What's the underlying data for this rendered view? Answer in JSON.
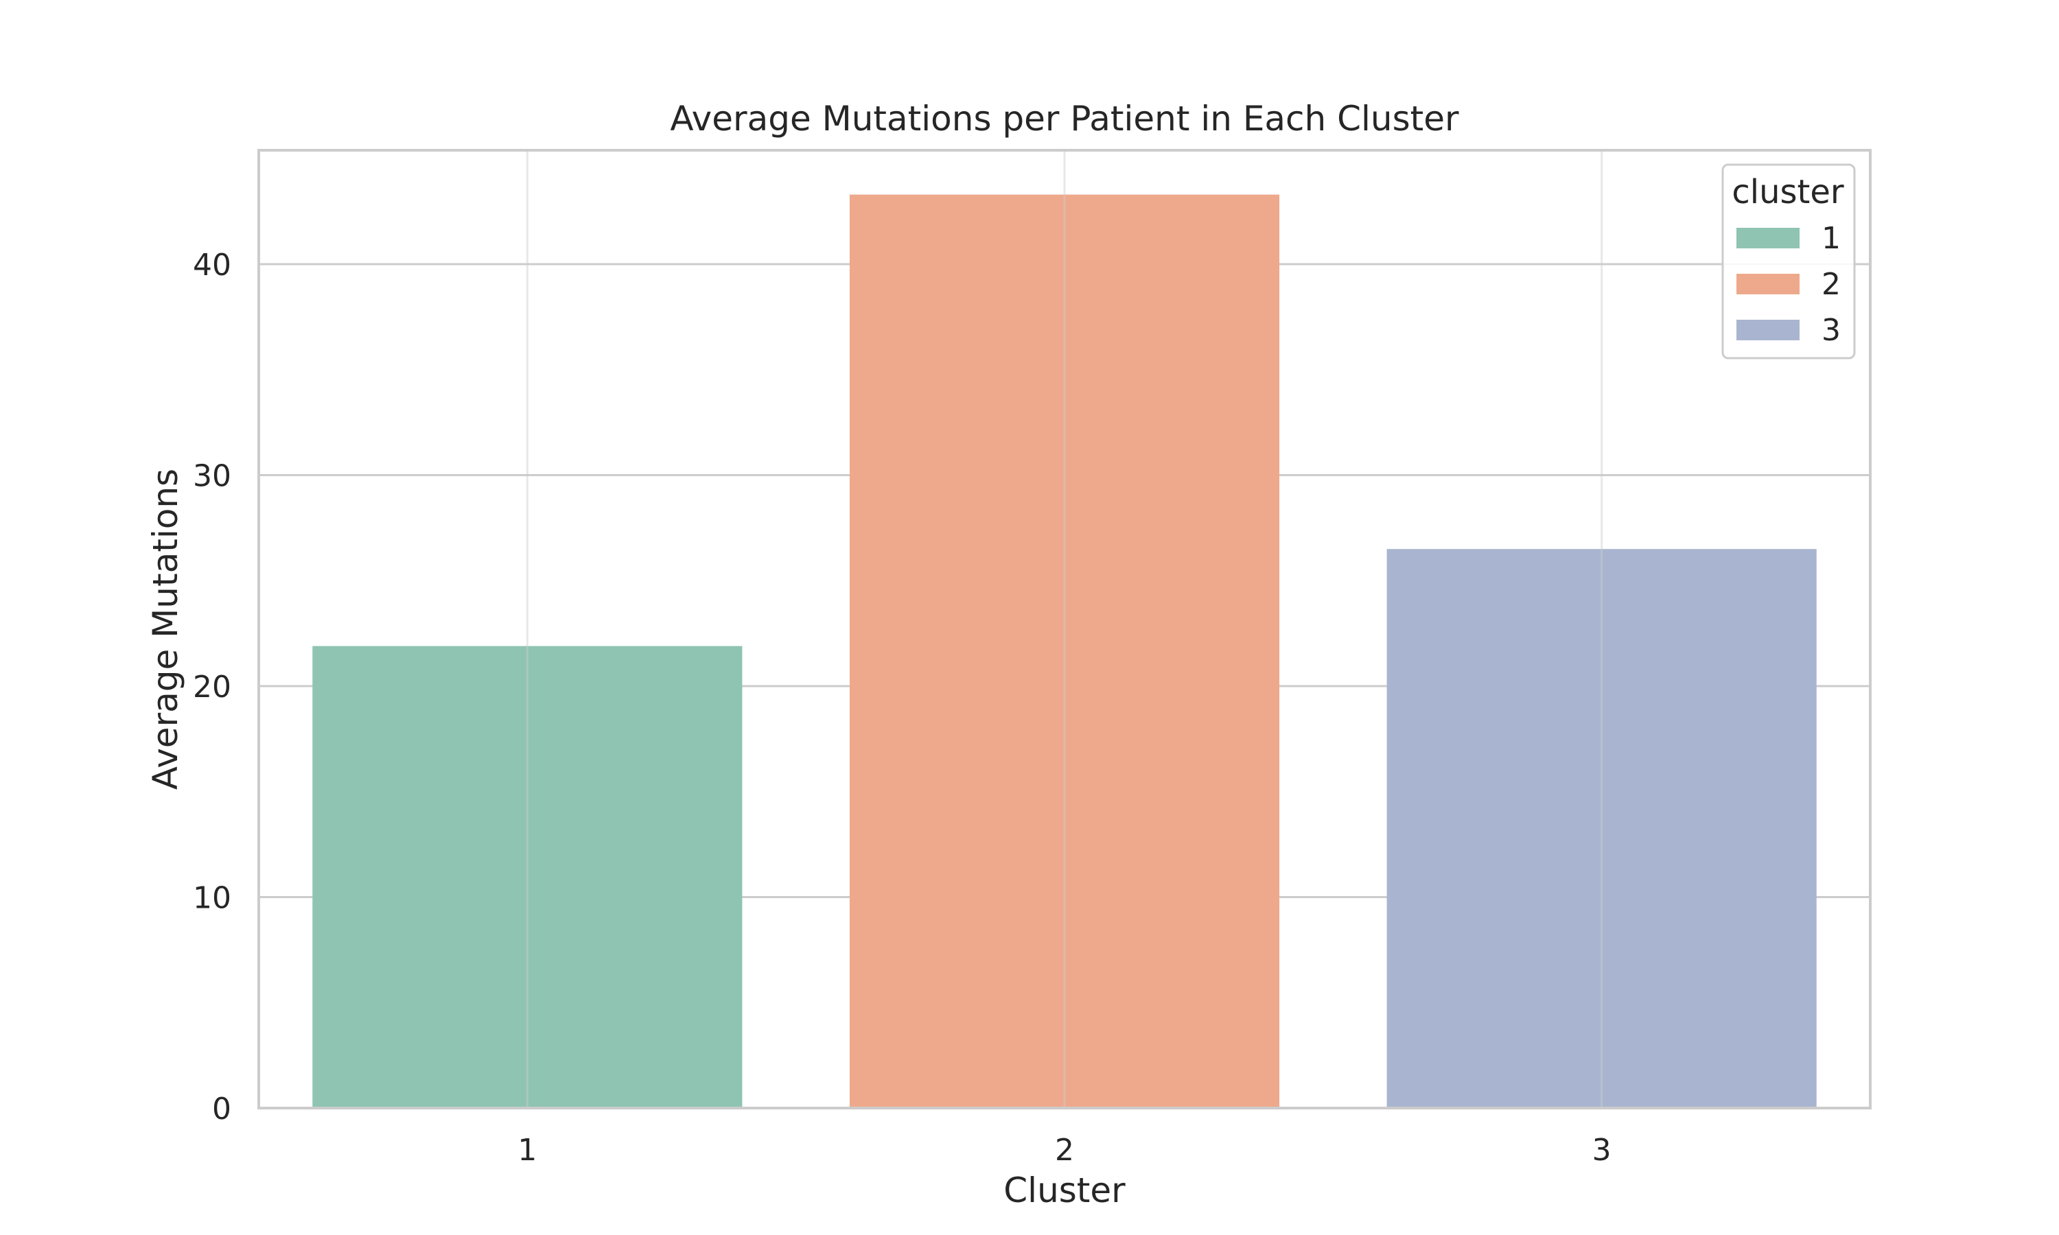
{
  "chart_data": {
    "type": "bar",
    "title": "Average Mutations per Patient in Each Cluster",
    "xlabel": "Cluster",
    "ylabel": "Average Mutations",
    "categories": [
      "1",
      "2",
      "3"
    ],
    "values": [
      21.9,
      43.3,
      26.5
    ],
    "ylim": [
      0,
      45.4
    ],
    "yticks": [
      0,
      10,
      20,
      30,
      40
    ],
    "grid": true,
    "colors": [
      "#8fc4b2",
      "#eea98c",
      "#a9b5d0"
    ],
    "legend": {
      "title": "cluster",
      "position": "top-right",
      "entries": [
        "1",
        "2",
        "3"
      ]
    }
  }
}
